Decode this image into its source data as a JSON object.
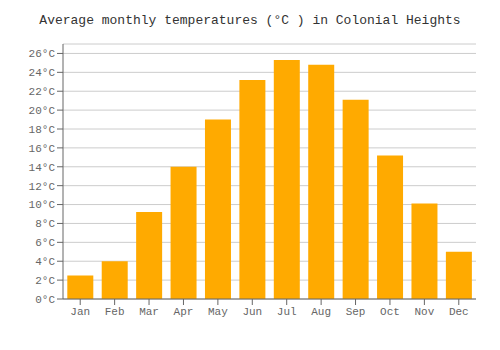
{
  "chart_data": {
    "type": "bar",
    "title": "Average monthly temperatures (°C ) in Colonial Heights",
    "categories": [
      "Jan",
      "Feb",
      "Mar",
      "Apr",
      "May",
      "Jun",
      "Jul",
      "Aug",
      "Sep",
      "Oct",
      "Nov",
      "Dec"
    ],
    "values": [
      2.5,
      4.0,
      9.2,
      14.0,
      19.0,
      23.2,
      25.3,
      24.8,
      21.1,
      15.2,
      10.1,
      5.0
    ],
    "color": "#FFAA00",
    "ylim": [
      0,
      27
    ],
    "yticks": [
      {
        "value": 0,
        "label": "0°C"
      },
      {
        "value": 2,
        "label": "2°C"
      },
      {
        "value": 4,
        "label": "4°C"
      },
      {
        "value": 6,
        "label": "6°C"
      },
      {
        "value": 8,
        "label": "8°C"
      },
      {
        "value": 10,
        "label": "10°C"
      },
      {
        "value": 12,
        "label": "12°C"
      },
      {
        "value": 14,
        "label": "14°C"
      },
      {
        "value": 16,
        "label": "16°C"
      },
      {
        "value": 18,
        "label": "18°C"
      },
      {
        "value": 20,
        "label": "20°C"
      },
      {
        "value": 22,
        "label": "22°C"
      },
      {
        "value": 24,
        "label": "24°C"
      },
      {
        "value": 26,
        "label": "26°C"
      }
    ],
    "grid": true
  }
}
